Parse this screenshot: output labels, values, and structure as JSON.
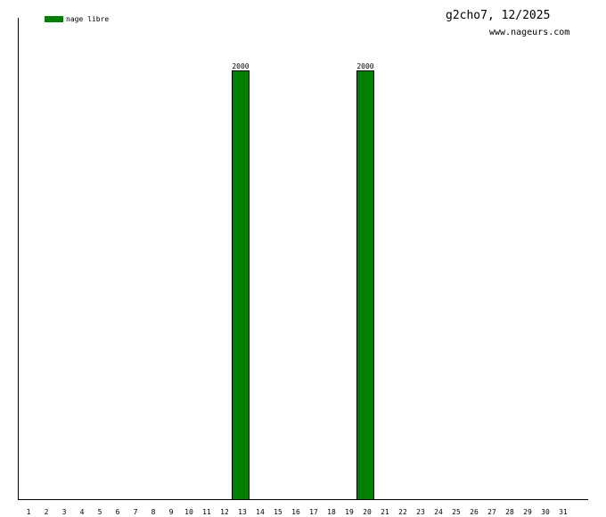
{
  "title": "g2cho7, 12/2025",
  "subtitle": "www.nageurs.com",
  "chart_data": {
    "type": "bar",
    "title": "g2cho7, 12/2025",
    "categories": [
      "1",
      "2",
      "3",
      "4",
      "5",
      "6",
      "7",
      "8",
      "9",
      "10",
      "11",
      "12",
      "13",
      "14",
      "15",
      "16",
      "17",
      "18",
      "19",
      "20",
      "21",
      "22",
      "23",
      "24",
      "25",
      "26",
      "27",
      "28",
      "29",
      "30",
      "31"
    ],
    "series": [
      {
        "name": "nage libre",
        "color": "#008000",
        "values": [
          0,
          0,
          0,
          0,
          0,
          0,
          0,
          0,
          0,
          0,
          0,
          0,
          2000,
          0,
          0,
          0,
          0,
          0,
          0,
          2000,
          0,
          0,
          0,
          0,
          0,
          0,
          0,
          0,
          0,
          0,
          0
        ]
      }
    ],
    "data_labels": true,
    "legend": "top-left",
    "grid": false
  }
}
